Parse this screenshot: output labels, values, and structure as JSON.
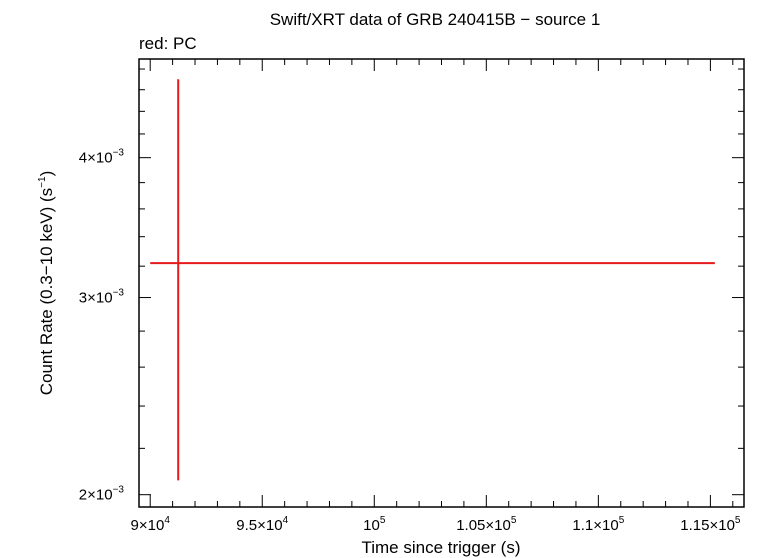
{
  "chart_data": {
    "type": "scatter",
    "title": "Swift/XRT data of GRB 240415B − source 1",
    "subtitle": "red: PC",
    "xlabel": "Time since trigger (s)",
    "ylabel_main": "Count Rate (0.3−10 keV) (s",
    "ylabel_sup": "−1",
    "ylabel_close": ")",
    "x_scale": "linear",
    "y_scale": "log",
    "xlim": [
      89500,
      116500
    ],
    "ylim": [
      0.00195,
      0.0049
    ],
    "grid": false,
    "legend": "none",
    "x_ticks": [
      {
        "value": 90000,
        "mantissa": "9×10",
        "exp": "4"
      },
      {
        "value": 95000,
        "mantissa": "9.5×10",
        "exp": "4"
      },
      {
        "value": 100000,
        "mantissa": "10",
        "exp": "5"
      },
      {
        "value": 105000,
        "mantissa": "1.05×10",
        "exp": "5"
      },
      {
        "value": 110000,
        "mantissa": "1.1×10",
        "exp": "5"
      },
      {
        "value": 115000,
        "mantissa": "1.15×10",
        "exp": "5"
      }
    ],
    "y_ticks": [
      {
        "value": 0.002,
        "mantissa": "2×10",
        "exp": "−3"
      },
      {
        "value": 0.003,
        "mantissa": "3×10",
        "exp": "−3"
      },
      {
        "value": 0.004,
        "mantissa": "4×10",
        "exp": "−3"
      }
    ],
    "series": [
      {
        "mode": "PC",
        "color": "#e41a1c",
        "points": [
          {
            "x": 91250,
            "xerr_minus": 1250,
            "xerr_plus": 23950,
            "y": 0.00322,
            "yerr_minus": 0.00116,
            "yerr_plus": 0.00148
          }
        ]
      }
    ]
  }
}
